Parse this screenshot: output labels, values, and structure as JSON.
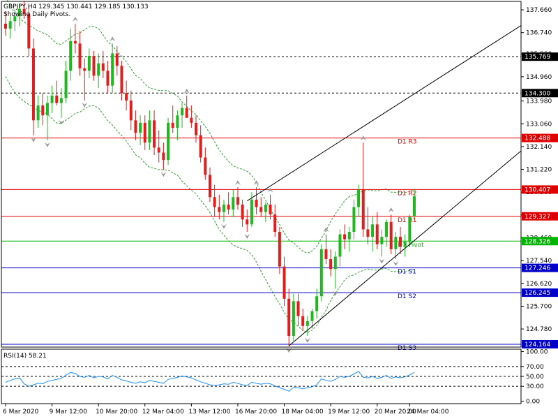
{
  "header": {
    "symbol_line": "GBPJPY,H4  129.345 130.441 129.185 130.133",
    "subtitle": "Showing Daily Pivots."
  },
  "rsi_header": "RSI(14) 58.21",
  "chart_data": [
    {
      "type": "candlestick",
      "symbol": "GBPJPY",
      "timeframe": "H4",
      "ohlc_last": {
        "open": 129.345,
        "high": 130.441,
        "low": 129.185,
        "close": 130.133
      },
      "ylim": [
        124.05,
        138.0
      ],
      "y_ticks": [
        "137.660",
        "136.740",
        "135.880",
        "134.960",
        "133.980",
        "133.060",
        "132.140",
        "131.220",
        "130.300",
        "129.380",
        "128.460",
        "127.540",
        "126.620",
        "125.700",
        "124.780"
      ],
      "x_ticks": [
        "6 Mar 2020",
        "9 Mar 12:00",
        "10 Mar 20:00",
        "12 Mar 04:00",
        "13 Mar 12:00",
        "16 Mar 20:00",
        "18 Mar 04:00",
        "19 Mar 12:00",
        "20 Mar 20:00",
        "24 Mar 04:00"
      ],
      "price_levels": [
        {
          "value": 135.769,
          "label": "135.769",
          "color": "#000000",
          "style": "dashed"
        },
        {
          "value": 134.3,
          "label": "134.300",
          "color": "#000000",
          "style": "dashed"
        },
        {
          "value": 132.488,
          "label": "132.488",
          "color": "#e10000",
          "style": "solid",
          "pivot": "D1 R3"
        },
        {
          "value": 130.407,
          "label": "130.407",
          "color": "#e10000",
          "style": "solid",
          "pivot": "D1 R2"
        },
        {
          "value": 129.327,
          "label": "129.327",
          "color": "#e10000",
          "style": "solid",
          "pivot": "D1 R1"
        },
        {
          "value": 128.326,
          "label": "128.326",
          "color": "#00b400",
          "style": "solid",
          "pivot": "D1 Pivot"
        },
        {
          "value": 127.246,
          "label": "127.246",
          "color": "#0000c8",
          "style": "solid",
          "pivot": "D1 S1"
        },
        {
          "value": 126.245,
          "label": "126.245",
          "color": "#0000c8",
          "style": "solid",
          "pivot": "D1 S2"
        },
        {
          "value": 124.164,
          "label": "124.164",
          "color": "#0000c8",
          "style": "solid",
          "pivot": "D1 S3"
        }
      ],
      "candles": [
        [
          137.1,
          137.6,
          136.6,
          136.9
        ],
        [
          136.9,
          137.4,
          136.5,
          137.2
        ],
        [
          137.2,
          137.7,
          136.8,
          137.4
        ],
        [
          137.4,
          137.9,
          137.0,
          137.7
        ],
        [
          137.7,
          138.0,
          137.3,
          137.5
        ],
        [
          137.5,
          137.8,
          135.8,
          136.1
        ],
        [
          136.1,
          136.5,
          132.6,
          133.2
        ],
        [
          133.2,
          134.2,
          132.9,
          133.8
        ],
        [
          133.8,
          134.3,
          133.0,
          133.4
        ],
        [
          133.4,
          134.2,
          132.4,
          133.9
        ],
        [
          133.9,
          134.6,
          133.5,
          134.2
        ],
        [
          134.2,
          134.8,
          133.8,
          133.9
        ],
        [
          133.9,
          134.5,
          133.3,
          134.1
        ],
        [
          134.1,
          135.6,
          133.9,
          135.2
        ],
        [
          135.2,
          136.9,
          134.8,
          136.4
        ],
        [
          136.4,
          137.1,
          135.9,
          136.3
        ],
        [
          136.3,
          136.8,
          135.0,
          135.3
        ],
        [
          135.3,
          135.7,
          134.0,
          135.2
        ],
        [
          135.2,
          136.1,
          134.9,
          135.8
        ],
        [
          135.8,
          136.0,
          134.8,
          135.0
        ],
        [
          135.0,
          135.9,
          134.5,
          135.5
        ],
        [
          135.5,
          136.0,
          134.9,
          135.2
        ],
        [
          135.2,
          135.6,
          134.3,
          134.6
        ],
        [
          134.6,
          136.3,
          134.3,
          135.9
        ],
        [
          135.9,
          136.2,
          135.0,
          135.4
        ],
        [
          135.4,
          135.6,
          134.0,
          134.3
        ],
        [
          134.3,
          134.8,
          133.6,
          134.0
        ],
        [
          134.0,
          134.4,
          132.8,
          133.2
        ],
        [
          133.2,
          133.6,
          132.4,
          132.7
        ],
        [
          132.7,
          133.4,
          132.2,
          133.1
        ],
        [
          133.1,
          133.4,
          132.0,
          132.3
        ],
        [
          132.3,
          133.6,
          132.0,
          133.2
        ],
        [
          133.2,
          133.6,
          131.8,
          132.1
        ],
        [
          132.1,
          132.8,
          131.5,
          131.9
        ],
        [
          131.9,
          132.3,
          131.2,
          131.6
        ],
        [
          131.6,
          133.3,
          131.4,
          133.1
        ],
        [
          133.1,
          133.8,
          132.7,
          132.9
        ],
        [
          132.9,
          133.6,
          132.4,
          133.4
        ],
        [
          133.4,
          133.9,
          132.9,
          133.7
        ],
        [
          133.7,
          134.2,
          133.4,
          133.3
        ],
        [
          133.3,
          133.8,
          132.9,
          133.1
        ],
        [
          133.1,
          133.4,
          132.3,
          132.6
        ],
        [
          132.6,
          133.0,
          131.5,
          131.7
        ],
        [
          131.7,
          132.1,
          130.8,
          131.0
        ],
        [
          131.0,
          131.3,
          129.9,
          130.1
        ],
        [
          130.1,
          130.6,
          129.3,
          129.7
        ],
        [
          129.7,
          130.2,
          129.2,
          129.5
        ],
        [
          129.5,
          130.0,
          129.1,
          129.8
        ],
        [
          129.8,
          130.3,
          129.4,
          129.6
        ],
        [
          129.6,
          130.4,
          129.3,
          130.1
        ],
        [
          130.1,
          130.5,
          129.6,
          129.8
        ],
        [
          129.8,
          130.0,
          128.9,
          129.2
        ],
        [
          129.2,
          129.6,
          128.7,
          129.0
        ],
        [
          129.0,
          130.3,
          128.9,
          130.0
        ],
        [
          130.0,
          130.5,
          129.4,
          129.7
        ],
        [
          129.7,
          130.1,
          129.3,
          129.5
        ],
        [
          129.5,
          129.9,
          129.1,
          129.8
        ],
        [
          129.8,
          130.2,
          129.2,
          129.4
        ],
        [
          129.4,
          129.8,
          128.5,
          128.7
        ],
        [
          128.7,
          128.9,
          127.0,
          127.3
        ],
        [
          127.3,
          127.7,
          125.7,
          126.0
        ],
        [
          126.0,
          126.4,
          124.1,
          124.5
        ],
        [
          124.5,
          126.2,
          124.3,
          125.9
        ],
        [
          125.9,
          126.2,
          124.9,
          125.3
        ],
        [
          125.3,
          125.6,
          124.7,
          124.9
        ],
        [
          124.9,
          125.3,
          124.5,
          125.1
        ],
        [
          125.1,
          125.6,
          124.8,
          125.5
        ],
        [
          125.5,
          126.4,
          125.2,
          126.1
        ],
        [
          126.1,
          128.2,
          125.9,
          128.0
        ],
        [
          128.0,
          128.6,
          127.4,
          127.6
        ],
        [
          127.6,
          128.0,
          126.9,
          127.2
        ],
        [
          127.2,
          127.9,
          126.4,
          127.7
        ],
        [
          127.7,
          128.8,
          127.3,
          128.6
        ],
        [
          128.6,
          129.0,
          128.0,
          128.4
        ],
        [
          128.4,
          128.9,
          127.9,
          128.7
        ],
        [
          128.7,
          130.0,
          128.4,
          129.7
        ],
        [
          129.7,
          130.6,
          129.3,
          130.4
        ],
        [
          130.4,
          132.3,
          128.5,
          128.8
        ],
        [
          128.8,
          129.7,
          128.2,
          128.5
        ],
        [
          128.5,
          129.3,
          127.9,
          129.0
        ],
        [
          129.0,
          129.5,
          128.0,
          128.2
        ],
        [
          128.2,
          128.8,
          127.7,
          128.5
        ],
        [
          128.5,
          129.2,
          128.1,
          129.1
        ],
        [
          129.1,
          129.4,
          127.8,
          128.0
        ],
        [
          128.0,
          128.7,
          127.6,
          128.5
        ],
        [
          128.5,
          128.9,
          127.8,
          128.1
        ],
        [
          128.1,
          128.6,
          127.7,
          128.3
        ],
        [
          128.3,
          129.4,
          128.1,
          129.3
        ],
        [
          129.345,
          130.441,
          129.185,
          130.133
        ]
      ],
      "envelope_note": "dashed green envelope bands"
    },
    {
      "type": "line",
      "indicator": "RSI(14)",
      "value_last": 58.21,
      "ylim": [
        -5,
        105
      ],
      "y_ticks": [
        "100.00",
        "70.00",
        "50.00",
        "30.00",
        "0.00"
      ],
      "levels": [
        70,
        50,
        30
      ],
      "values": [
        38,
        42,
        45,
        47,
        35,
        30,
        33,
        36,
        35,
        40,
        42,
        44,
        46,
        53,
        58,
        56,
        50,
        48,
        52,
        47,
        50,
        49,
        45,
        52,
        48,
        43,
        41,
        38,
        36,
        39,
        37,
        42,
        40,
        38,
        36,
        44,
        46,
        48,
        51,
        49,
        47,
        43,
        39,
        36,
        33,
        32,
        33,
        35,
        34,
        38,
        36,
        33,
        32,
        38,
        36,
        34,
        36,
        35,
        31,
        27,
        24,
        20,
        28,
        27,
        25,
        27,
        29,
        33,
        45,
        42,
        40,
        44,
        50,
        48,
        50,
        55,
        60,
        48,
        47,
        50,
        46,
        48,
        52,
        46,
        49,
        47,
        49,
        53,
        58
      ]
    }
  ]
}
